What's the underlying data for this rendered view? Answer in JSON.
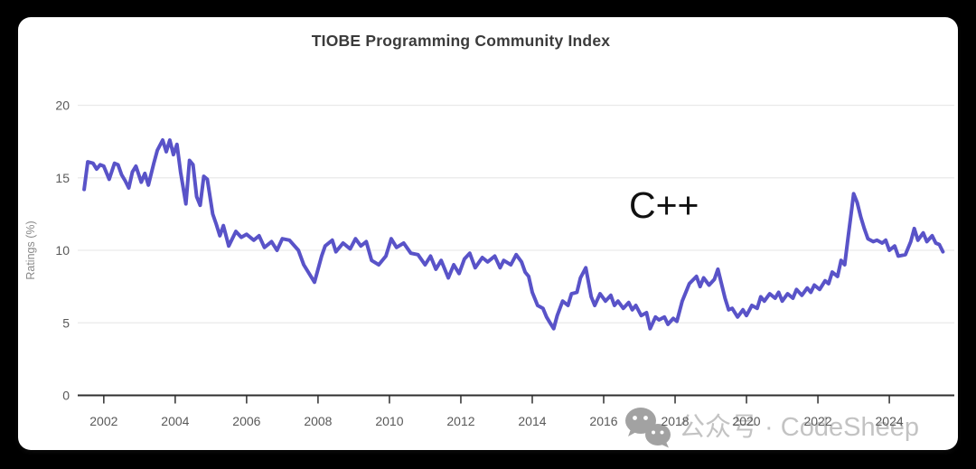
{
  "page": {
    "title": "TIOBE Programming Community Index"
  },
  "annotation": {
    "label": "C++"
  },
  "watermark": {
    "icon": "wechat-icon",
    "text": "公众号 · CodeSheep"
  },
  "colors": {
    "background": "#000000",
    "card": "#ffffff",
    "title_text": "#3b3b3b",
    "line": "#5953c8",
    "grid": "#e9e9e9",
    "axis": "#2f2f2f",
    "tick_label": "#595959",
    "y_axis_title": "#8a8a8a",
    "annotation_text": "#111111",
    "watermark_icon": "#9e9e9e",
    "watermark_text": "#c0c0c0"
  },
  "chart_data": {
    "type": "line",
    "title": "TIOBE Programming Community Index",
    "xlabel": "",
    "ylabel": "Ratings (%)",
    "legend": "none",
    "grid": "horizontal",
    "x_ticks": [
      2002,
      2004,
      2006,
      2008,
      2010,
      2012,
      2014,
      2016,
      2018,
      2020,
      2022,
      2024
    ],
    "y_ticks": [
      0,
      5,
      10,
      15,
      20
    ],
    "xlim": [
      2001.27,
      2025.82
    ],
    "ylim": [
      0,
      20
    ],
    "series": [
      {
        "name": "C++",
        "x": [
          2001.45,
          2001.55,
          2001.7,
          2001.8,
          2001.9,
          2002.0,
          2002.15,
          2002.3,
          2002.4,
          2002.5,
          2002.6,
          2002.7,
          2002.8,
          2002.9,
          2003.05,
          2003.15,
          2003.25,
          2003.4,
          2003.5,
          2003.65,
          2003.75,
          2003.85,
          2003.95,
          2004.05,
          2004.15,
          2004.3,
          2004.4,
          2004.5,
          2004.6,
          2004.7,
          2004.8,
          2004.9,
          2005.05,
          2005.15,
          2005.25,
          2005.35,
          2005.5,
          2005.7,
          2005.85,
          2006.0,
          2006.2,
          2006.35,
          2006.5,
          2006.7,
          2006.85,
          2007.0,
          2007.2,
          2007.45,
          2007.6,
          2007.9,
          2008.1,
          2008.2,
          2008.4,
          2008.5,
          2008.7,
          2008.9,
          2009.05,
          2009.2,
          2009.35,
          2009.5,
          2009.7,
          2009.9,
          2010.05,
          2010.2,
          2010.4,
          2010.6,
          2010.8,
          2011.0,
          2011.15,
          2011.3,
          2011.45,
          2011.65,
          2011.8,
          2011.95,
          2012.1,
          2012.25,
          2012.4,
          2012.6,
          2012.75,
          2012.95,
          2013.1,
          2013.2,
          2013.4,
          2013.55,
          2013.7,
          2013.8,
          2013.9,
          2014.0,
          2014.15,
          2014.3,
          2014.4,
          2014.5,
          2014.6,
          2014.7,
          2014.85,
          2015.0,
          2015.1,
          2015.25,
          2015.35,
          2015.5,
          2015.65,
          2015.75,
          2015.9,
          2016.05,
          2016.2,
          2016.3,
          2016.4,
          2016.55,
          2016.7,
          2016.8,
          2016.9,
          2017.05,
          2017.2,
          2017.3,
          2017.45,
          2017.55,
          2017.7,
          2017.8,
          2017.95,
          2018.05,
          2018.2,
          2018.4,
          2018.6,
          2018.7,
          2018.8,
          2018.95,
          2019.1,
          2019.2,
          2019.4,
          2019.5,
          2019.6,
          2019.75,
          2019.9,
          2020.0,
          2020.15,
          2020.3,
          2020.4,
          2020.5,
          2020.65,
          2020.8,
          2020.9,
          2021.0,
          2021.15,
          2021.3,
          2021.4,
          2021.55,
          2021.7,
          2021.8,
          2021.9,
          2022.05,
          2022.2,
          2022.3,
          2022.4,
          2022.55,
          2022.65,
          2022.75,
          2022.85,
          2022.95,
          2023.0,
          2023.1,
          2023.2,
          2023.3,
          2023.4,
          2023.55,
          2023.65,
          2023.8,
          2023.9,
          2024.0,
          2024.15,
          2024.25,
          2024.45,
          2024.6,
          2024.7,
          2024.8,
          2024.95,
          2025.05,
          2025.2,
          2025.3,
          2025.4,
          2025.5
        ],
        "y": [
          14.2,
          16.1,
          16.0,
          15.6,
          15.9,
          15.8,
          14.9,
          16.0,
          15.9,
          15.2,
          14.8,
          14.3,
          15.4,
          15.8,
          14.7,
          15.3,
          14.5,
          16.0,
          16.9,
          17.6,
          16.8,
          17.6,
          16.6,
          17.3,
          15.4,
          13.2,
          16.2,
          15.9,
          13.7,
          13.1,
          15.1,
          14.9,
          12.5,
          11.8,
          11.0,
          11.7,
          10.3,
          11.3,
          10.9,
          11.1,
          10.7,
          11.0,
          10.2,
          10.6,
          10.0,
          10.8,
          10.7,
          10.0,
          9.0,
          7.8,
          9.6,
          10.3,
          10.7,
          9.9,
          10.5,
          10.1,
          10.8,
          10.3,
          10.6,
          9.3,
          9.0,
          9.6,
          10.8,
          10.2,
          10.5,
          9.8,
          9.7,
          9.0,
          9.6,
          8.7,
          9.3,
          8.1,
          9.0,
          8.4,
          9.4,
          9.8,
          8.8,
          9.5,
          9.2,
          9.6,
          8.8,
          9.3,
          9.0,
          9.7,
          9.2,
          8.5,
          8.2,
          7.1,
          6.2,
          6.0,
          5.4,
          5.0,
          4.6,
          5.5,
          6.5,
          6.2,
          7.0,
          7.1,
          8.1,
          8.8,
          6.8,
          6.2,
          7.0,
          6.5,
          6.9,
          6.2,
          6.5,
          6.0,
          6.4,
          5.9,
          6.2,
          5.5,
          5.7,
          4.6,
          5.4,
          5.2,
          5.4,
          4.9,
          5.3,
          5.1,
          6.5,
          7.7,
          8.2,
          7.5,
          8.1,
          7.6,
          8.0,
          8.7,
          6.7,
          5.9,
          6.0,
          5.4,
          5.9,
          5.5,
          6.2,
          6.0,
          6.8,
          6.5,
          7.0,
          6.7,
          7.1,
          6.5,
          7.0,
          6.7,
          7.3,
          6.9,
          7.4,
          7.1,
          7.6,
          7.3,
          7.9,
          7.7,
          8.5,
          8.2,
          9.3,
          9.0,
          11.0,
          12.9,
          13.9,
          13.3,
          12.3,
          11.5,
          10.8,
          10.6,
          10.7,
          10.5,
          10.7,
          10.0,
          10.3,
          9.6,
          9.7,
          10.6,
          11.5,
          10.7,
          11.2,
          10.6,
          11.0,
          10.5,
          10.4,
          9.9
        ]
      }
    ]
  }
}
